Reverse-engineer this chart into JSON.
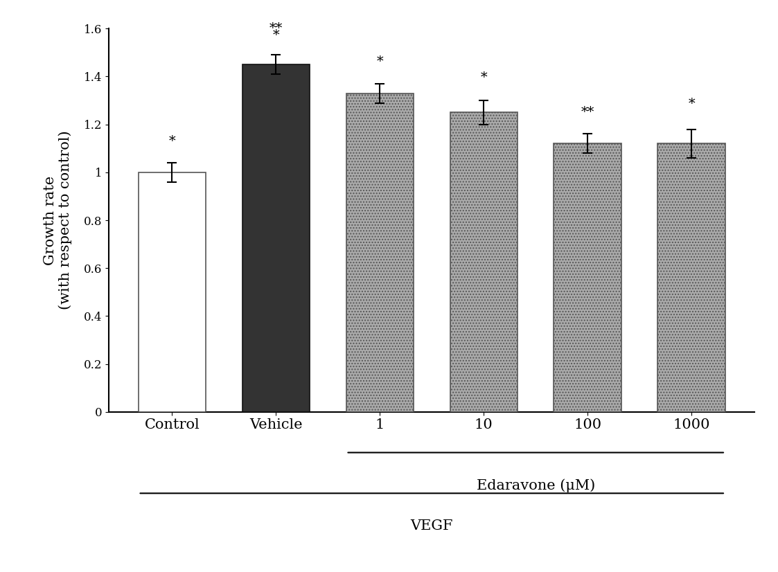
{
  "categories": [
    "Control",
    "Vehicle",
    "1",
    "10",
    "100",
    "1000"
  ],
  "values": [
    1.0,
    1.45,
    1.33,
    1.25,
    1.12,
    1.12
  ],
  "errors": [
    0.04,
    0.04,
    0.04,
    0.05,
    0.04,
    0.06
  ],
  "bar_colors": [
    "#ffffff",
    "#333333",
    "#aaaaaa",
    "#aaaaaa",
    "#aaaaaa",
    "#aaaaaa"
  ],
  "bar_edge_colors": [
    "#555555",
    "#111111",
    "#555555",
    "#555555",
    "#555555",
    "#555555"
  ],
  "hatch_patterns": [
    "",
    "",
    "....",
    "....",
    "....",
    "...."
  ],
  "ann_texts": [
    "*",
    "**",
    "*",
    "*",
    "**",
    "*"
  ],
  "ann_sub_texts": [
    "",
    "*",
    "",
    "",
    "",
    ""
  ],
  "ylabel_line1": "Growth rate",
  "ylabel_line2": "(with respect to control)",
  "ylim": [
    0,
    1.6
  ],
  "yticks": [
    0,
    0.2,
    0.4,
    0.6,
    0.8,
    1.0,
    1.2,
    1.4,
    1.6
  ],
  "ytick_labels": [
    "0",
    "0.2",
    "0.4",
    "0.6",
    "0.8",
    "1",
    "1.2",
    "1.4",
    "1.6"
  ],
  "edaravone_label": "Edaravone (μM)",
  "vegf_label": "VEGF",
  "background_color": "#ffffff",
  "tick_fontsize": 12,
  "label_fontsize": 15,
  "annotation_fontsize": 14
}
